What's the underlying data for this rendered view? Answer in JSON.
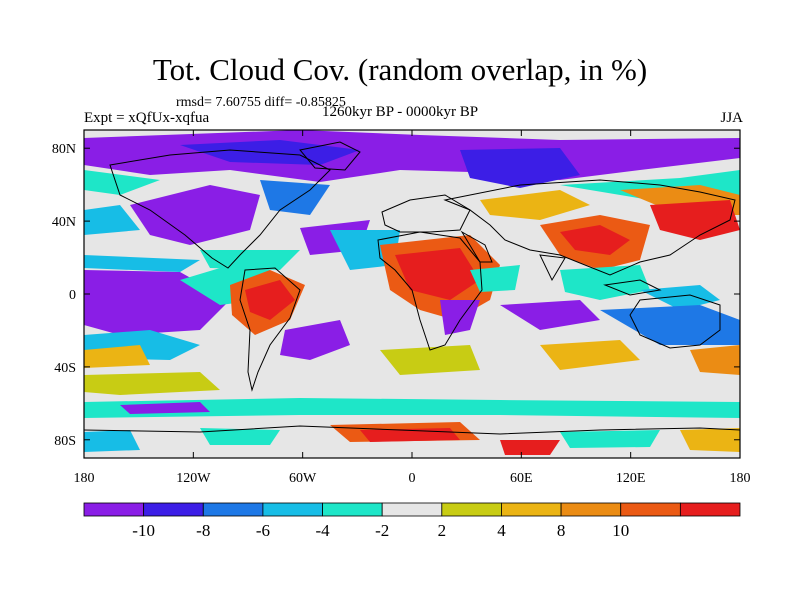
{
  "title": "Tot. Cloud Cov. (random overlap, in %)",
  "stats_line": "rmsd= 7.60755 diff= -0.85825",
  "experiment": "Expt = xQfUx-xqfua",
  "period": "1260kyr BP - 0000kyr BP",
  "season": "JJA",
  "lon_ticks": [
    "180",
    "120W",
    "60W",
    "0",
    "60E",
    "120E",
    "180"
  ],
  "lat_ticks": [
    "80N",
    "40N",
    "0",
    "40S",
    "80S"
  ],
  "colorbar": {
    "labels": [
      "-10",
      "-8",
      "-6",
      "-4",
      "-2",
      "2",
      "4",
      "8",
      "10"
    ],
    "colors": [
      "#8a1ee6",
      "#3c1ee6",
      "#1e78e6",
      "#17bde6",
      "#1ee6c8",
      "#e6e6e6",
      "#c8cc14",
      "#ebb414",
      "#eb8c14",
      "#eb5a14",
      "#e61e1e"
    ]
  }
}
